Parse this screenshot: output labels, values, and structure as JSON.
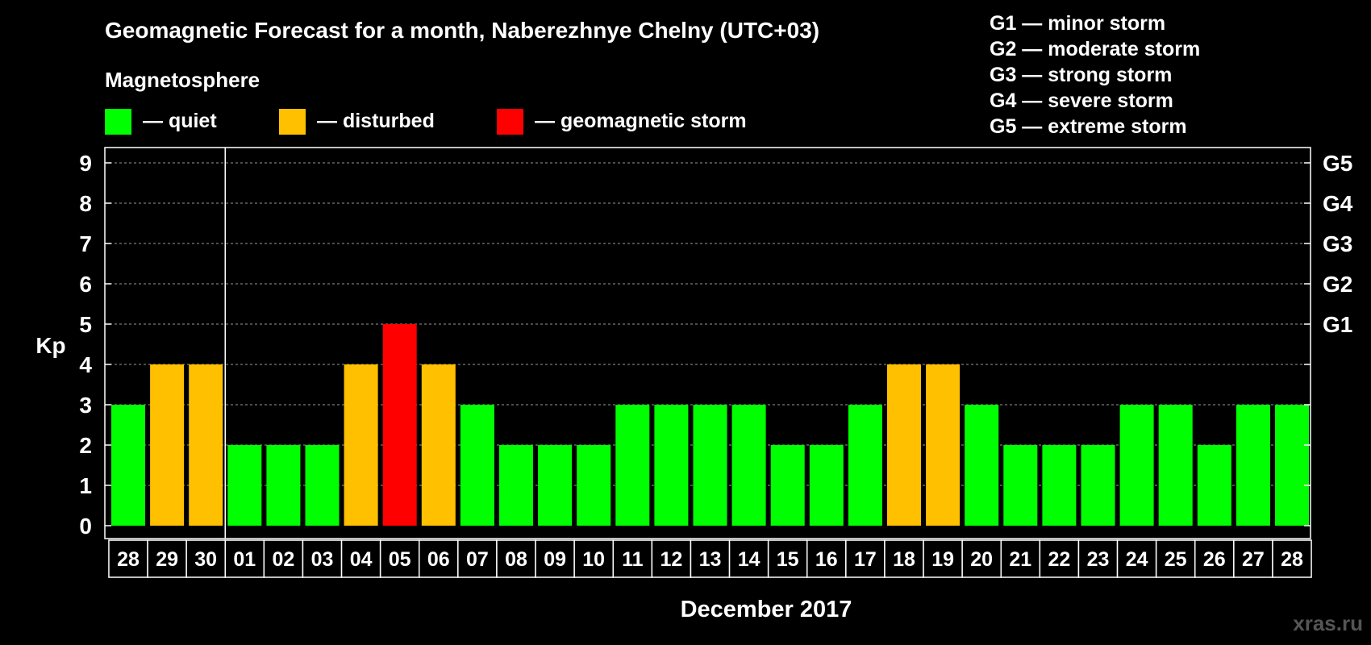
{
  "chart_data": {
    "type": "bar",
    "title": "Geomagnetic Forecast for a month, Naberezhnye Chelny (UTC+03)",
    "legend_title": "Magnetosphere",
    "legend": [
      {
        "key": "quiet",
        "label": "— quiet",
        "color": "#00ff00"
      },
      {
        "key": "disturbed",
        "label": "— disturbed",
        "color": "#ffc000"
      },
      {
        "key": "storm",
        "label": "— geomagnetic storm",
        "color": "#ff0000"
      }
    ],
    "g_legend": [
      "G1 — minor storm",
      "G2 — moderate storm",
      "G3 — strong storm",
      "G4 — severe storm",
      "G5 — extreme storm"
    ],
    "ylabel": "Kp",
    "xlabel": "December 2017",
    "ylim": [
      0,
      9
    ],
    "yticks": [
      "0",
      "1",
      "2",
      "3",
      "4",
      "5",
      "6",
      "7",
      "8",
      "9"
    ],
    "right_ticks": [
      {
        "value": 5,
        "label": "G1"
      },
      {
        "value": 6,
        "label": "G2"
      },
      {
        "value": 7,
        "label": "G3"
      },
      {
        "value": 8,
        "label": "G4"
      },
      {
        "value": 9,
        "label": "G5"
      }
    ],
    "categories": [
      "28",
      "29",
      "30",
      "01",
      "02",
      "03",
      "04",
      "05",
      "06",
      "07",
      "08",
      "09",
      "10",
      "11",
      "12",
      "13",
      "14",
      "15",
      "16",
      "17",
      "18",
      "19",
      "20",
      "21",
      "22",
      "23",
      "24",
      "25",
      "26",
      "27",
      "28"
    ],
    "values": [
      3,
      4,
      4,
      2,
      2,
      2,
      4,
      5,
      4,
      3,
      2,
      2,
      2,
      3,
      3,
      3,
      3,
      2,
      2,
      3,
      4,
      4,
      3,
      2,
      2,
      2,
      3,
      3,
      2,
      3,
      3
    ],
    "level": [
      "quiet",
      "disturbed",
      "disturbed",
      "quiet",
      "quiet",
      "quiet",
      "disturbed",
      "storm",
      "disturbed",
      "quiet",
      "quiet",
      "quiet",
      "quiet",
      "quiet",
      "quiet",
      "quiet",
      "quiet",
      "quiet",
      "quiet",
      "quiet",
      "disturbed",
      "disturbed",
      "quiet",
      "quiet",
      "quiet",
      "quiet",
      "quiet",
      "quiet",
      "quiet",
      "quiet",
      "quiet"
    ],
    "grid": true
  },
  "watermark": "xras.ru"
}
